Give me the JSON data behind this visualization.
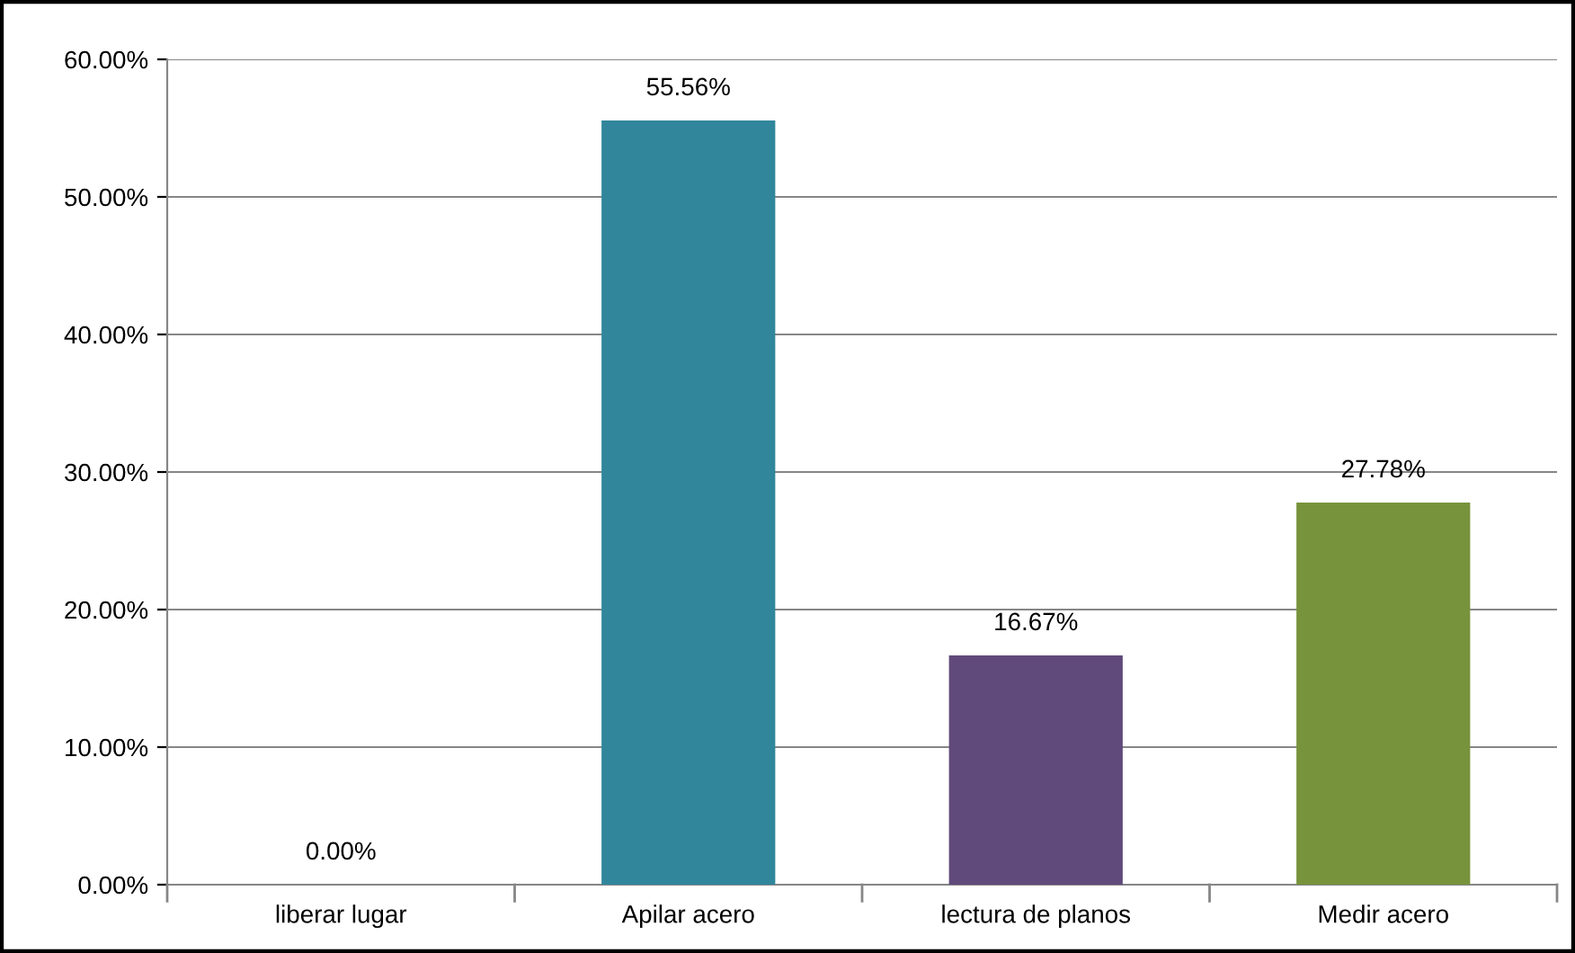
{
  "chart_data": {
    "type": "bar",
    "categories": [
      "liberar lugar",
      "Apilar acero",
      "lectura de planos",
      "Medir acero"
    ],
    "values": [
      0,
      55.56,
      16.67,
      27.78
    ],
    "colors": [
      "#4f81bd",
      "#31869b",
      "#604a7b",
      "#77933c"
    ],
    "value_labels": [
      "0.00%",
      "55.56%",
      "16.67%",
      "27.78%"
    ],
    "ylim": [
      0,
      60
    ],
    "yticks": [
      {
        "value": 0,
        "label": "0.00%"
      },
      {
        "value": 10,
        "label": "10.00%"
      },
      {
        "value": 20,
        "label": "20.00%"
      },
      {
        "value": 30,
        "label": "30.00%"
      },
      {
        "value": 40,
        "label": "40.00%"
      },
      {
        "value": 50,
        "label": "50.00%"
      },
      {
        "value": 60,
        "label": "60.00%"
      }
    ],
    "grid": "y",
    "legend": false
  }
}
